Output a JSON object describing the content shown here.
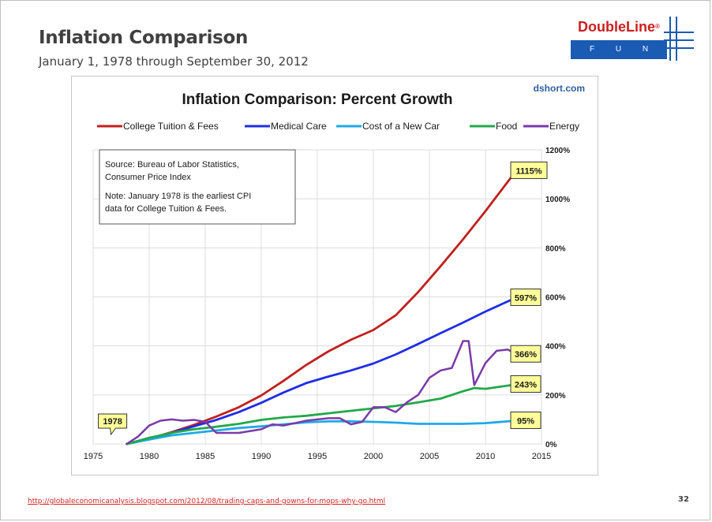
{
  "slide": {
    "title": "Inflation Comparison",
    "subtitle": "January 1, 1978 through September 30, 2012",
    "page_number": "32",
    "source_url": "http://globaleconomicanalysis.blogspot.com/2012/08/trading-caps-and-gowns-for-mops-why-go.html"
  },
  "logo": {
    "name": "DoubleLine",
    "registered": "®",
    "tagline": "F U N D S",
    "brand_red": "#cc1f1f",
    "brand_blue": "#1a5bb3"
  },
  "chart_data": {
    "type": "line",
    "title": "Inflation Comparison: Percent Growth",
    "watermark": "dshort.com",
    "xlabel": "",
    "ylabel": "",
    "xlim": [
      1975,
      2015
    ],
    "ylim": [
      0,
      1200
    ],
    "x_ticks": [
      1975,
      1980,
      1985,
      1990,
      1995,
      2000,
      2005,
      2010,
      2015
    ],
    "y_ticks": [
      0,
      200,
      400,
      600,
      800,
      1000,
      1200
    ],
    "y_tick_suffix": "%",
    "y_axis_side": "right",
    "grid": true,
    "legend_position": "top",
    "series": [
      {
        "name": "College Tuition & Fees",
        "color": "#c0201e",
        "end_label": "1115%",
        "x": [
          1978,
          1980,
          1982,
          1984,
          1986,
          1988,
          1990,
          1992,
          1994,
          1996,
          1998,
          2000,
          2002,
          2004,
          2006,
          2008,
          2010,
          2012.75
        ],
        "y": [
          0,
          22,
          48,
          78,
          112,
          150,
          198,
          258,
          322,
          378,
          425,
          465,
          525,
          620,
          725,
          835,
          950,
          1115
        ]
      },
      {
        "name": "Medical Care",
        "color": "#1f2ee6",
        "end_label": "597%",
        "x": [
          1978,
          1980,
          1982,
          1984,
          1986,
          1988,
          1990,
          1992,
          1994,
          1996,
          1998,
          2000,
          2002,
          2004,
          2006,
          2008,
          2010,
          2012.75
        ],
        "y": [
          0,
          20,
          45,
          72,
          98,
          130,
          168,
          210,
          248,
          275,
          300,
          328,
          365,
          408,
          452,
          495,
          540,
          597
        ]
      },
      {
        "name": "Cost of a New Car",
        "color": "#1fa9e6",
        "end_label": "95%",
        "x": [
          1978,
          1980,
          1982,
          1984,
          1986,
          1988,
          1990,
          1992,
          1994,
          1996,
          1998,
          2000,
          2002,
          2004,
          2006,
          2008,
          2010,
          2012.75
        ],
        "y": [
          0,
          18,
          35,
          45,
          55,
          65,
          72,
          80,
          88,
          92,
          92,
          90,
          87,
          82,
          82,
          82,
          85,
          95
        ]
      },
      {
        "name": "Food",
        "color": "#22a84a",
        "end_label": "243%",
        "x": [
          1978,
          1980,
          1982,
          1984,
          1986,
          1988,
          1990,
          1992,
          1994,
          1996,
          1998,
          2000,
          2002,
          2004,
          2006,
          2008,
          2009,
          2010,
          2012.75
        ],
        "y": [
          0,
          25,
          45,
          60,
          70,
          82,
          98,
          108,
          115,
          125,
          135,
          145,
          155,
          170,
          185,
          215,
          228,
          225,
          243
        ]
      },
      {
        "name": "Energy",
        "color": "#7a3aa8",
        "end_label": "366%",
        "x": [
          1978,
          1979,
          1980,
          1981,
          1982,
          1983,
          1984,
          1985,
          1986,
          1987,
          1988,
          1990,
          1991,
          1992,
          1994,
          1996,
          1997,
          1998,
          1999,
          2000,
          2001,
          2002,
          2003,
          2004,
          2005,
          2006,
          2007,
          2008,
          2008.5,
          2009,
          2010,
          2011,
          2012,
          2012.75
        ],
        "y": [
          0,
          30,
          75,
          95,
          100,
          95,
          98,
          90,
          45,
          45,
          45,
          60,
          80,
          75,
          95,
          105,
          105,
          80,
          90,
          150,
          150,
          130,
          170,
          200,
          270,
          300,
          310,
          420,
          420,
          240,
          330,
          380,
          385,
          366
        ]
      }
    ],
    "annotations": [
      {
        "text_lines": [
          "Source: Bureau of Labor Statistics,",
          "Consumer Price Index",
          "Note: January 1978  is the earliest CPI",
          "data for College Tuition & Fees."
        ]
      },
      {
        "text": "1978",
        "x": 1978,
        "y": 0
      }
    ]
  }
}
